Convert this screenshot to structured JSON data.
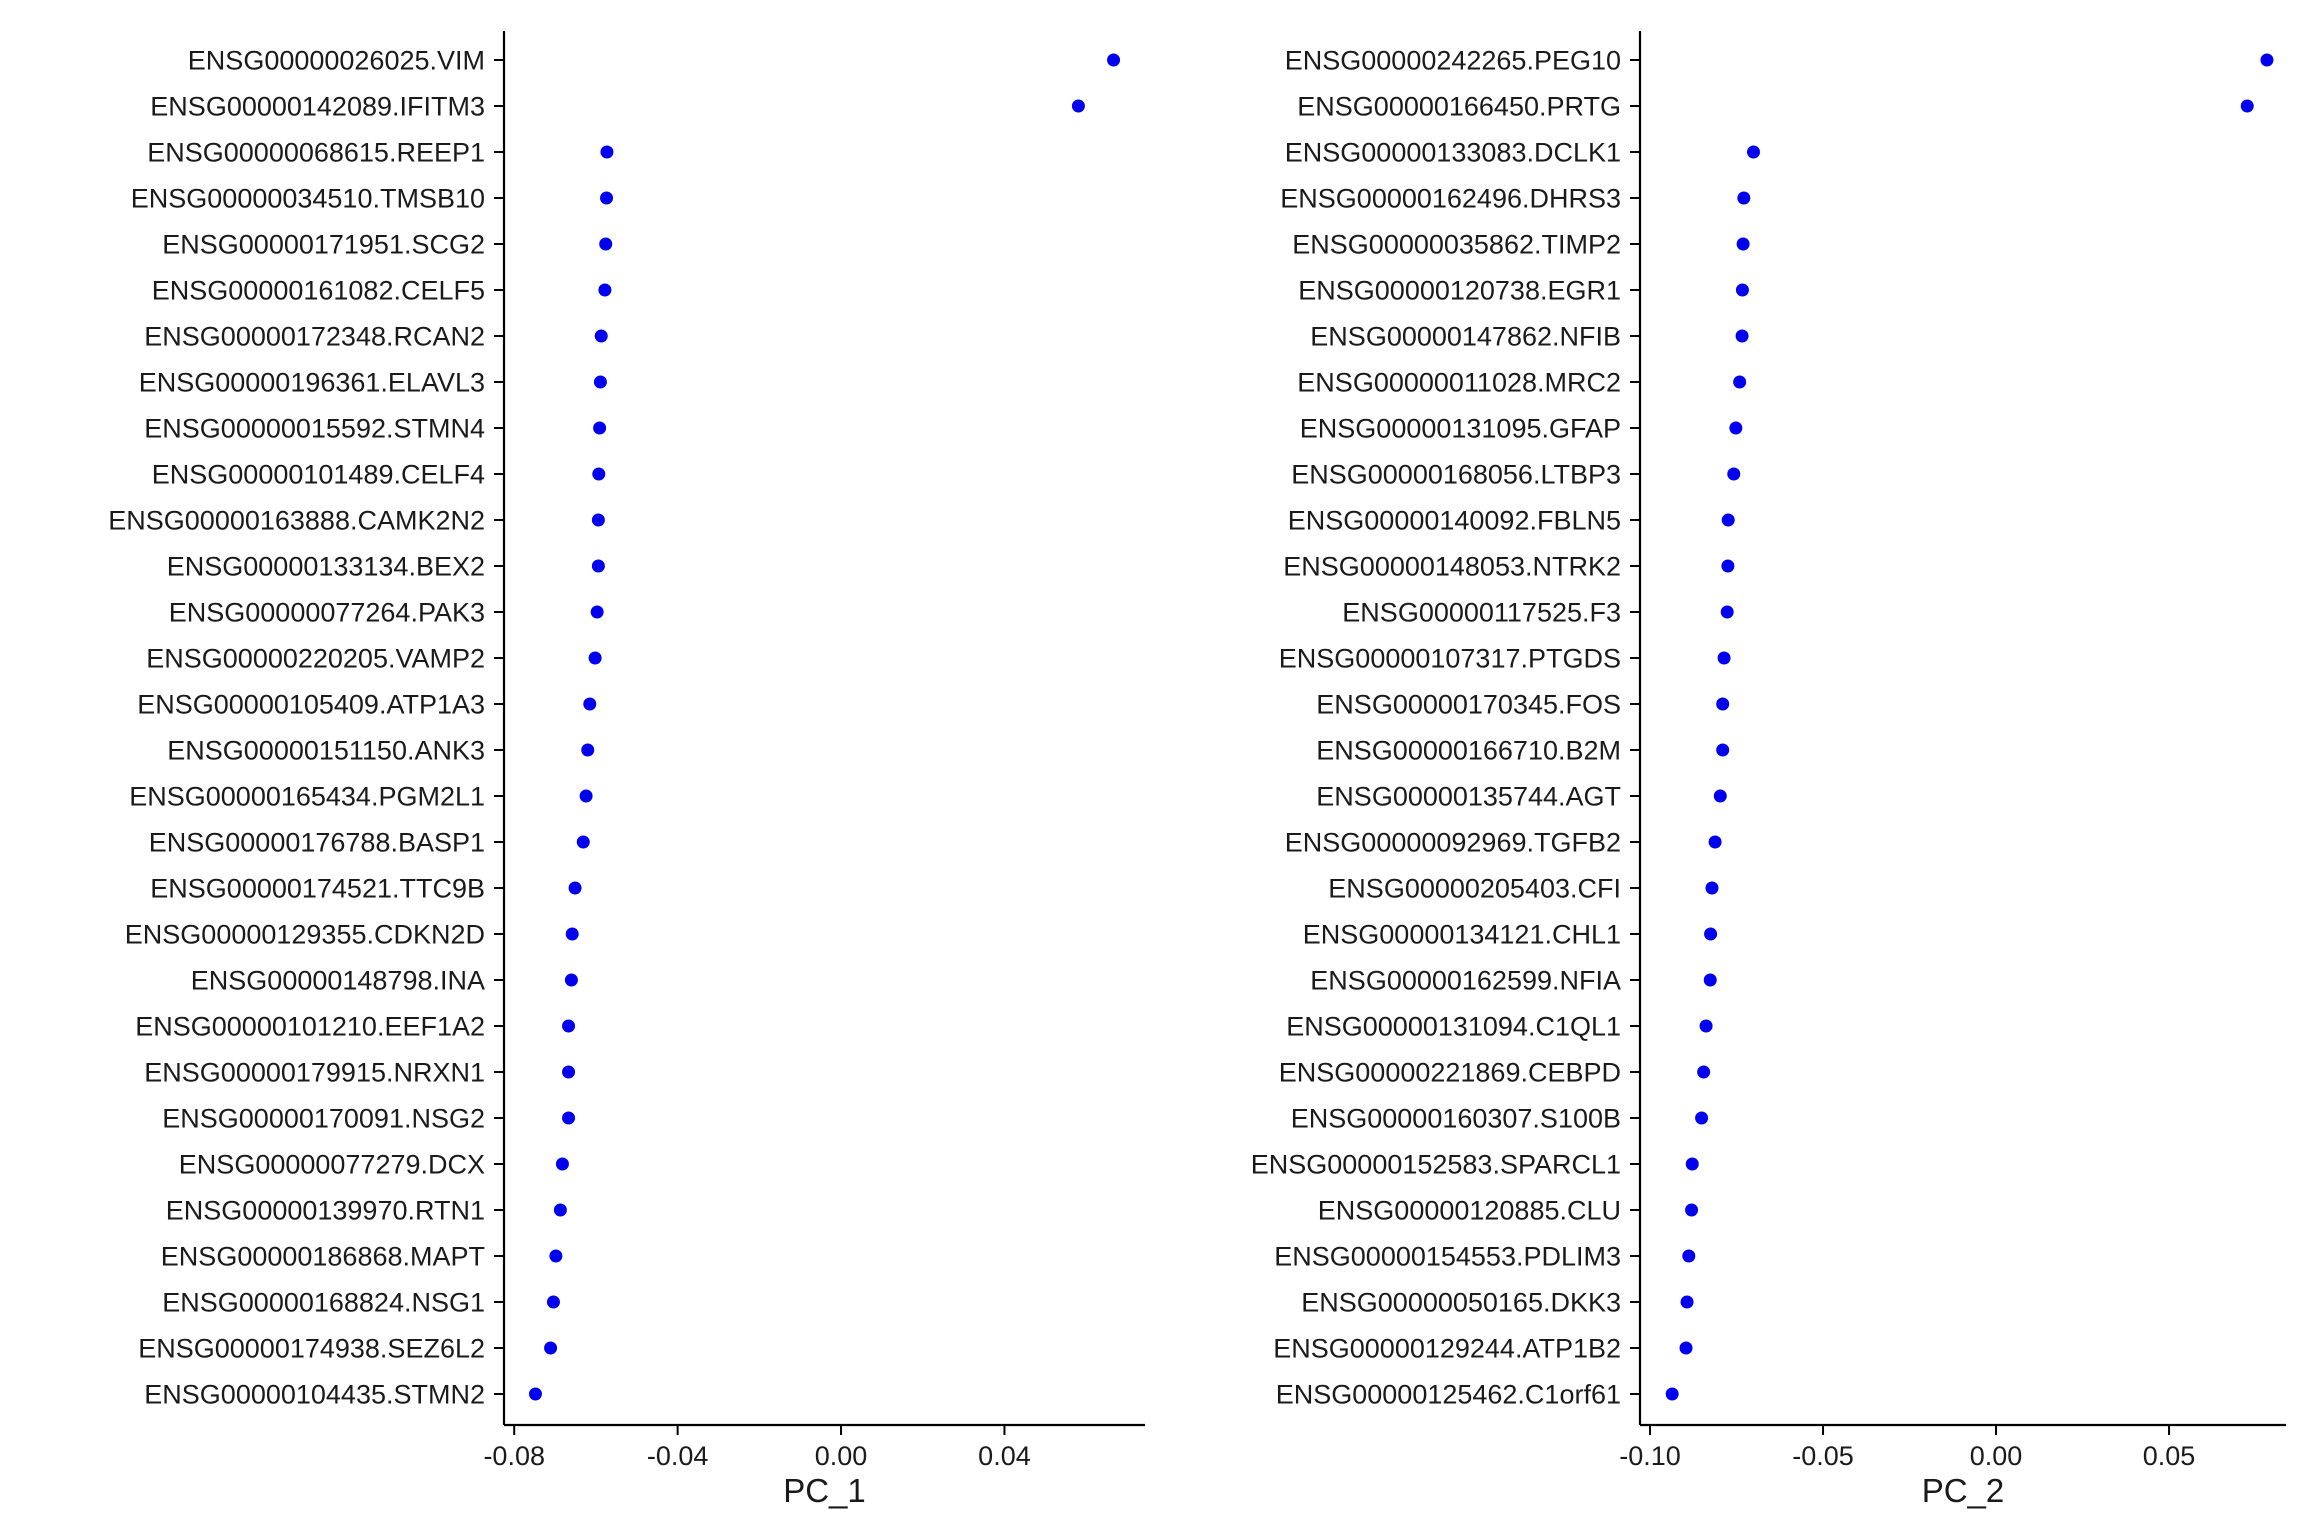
{
  "chart_data": [
    {
      "type": "scatter",
      "xlabel": "PC_1",
      "ylabel": "",
      "xlim": [
        -0.0825,
        0.0744
      ],
      "x_ticks": [
        -0.08,
        -0.04,
        0.0,
        0.04
      ],
      "x_tick_labels": [
        "-0.08",
        "-0.04",
        "0.00",
        "0.04"
      ],
      "grid": false,
      "point_color": "#0000ee",
      "points": [
        {
          "gene": "ENSG00000026025.VIM",
          "value": 0.0667
        },
        {
          "gene": "ENSG00000142089.IFITM3",
          "value": 0.0581
        },
        {
          "gene": "ENSG00000068615.REEP1",
          "value": -0.0573
        },
        {
          "gene": "ENSG00000034510.TMSB10",
          "value": -0.0574
        },
        {
          "gene": "ENSG00000171951.SCG2",
          "value": -0.0576
        },
        {
          "gene": "ENSG00000161082.CELF5",
          "value": -0.0578
        },
        {
          "gene": "ENSG00000172348.RCAN2",
          "value": -0.0587
        },
        {
          "gene": "ENSG00000196361.ELAVL3",
          "value": -0.0589
        },
        {
          "gene": "ENSG00000015592.STMN4",
          "value": -0.0591
        },
        {
          "gene": "ENSG00000101489.CELF4",
          "value": -0.0593
        },
        {
          "gene": "ENSG00000163888.CAMK2N2",
          "value": -0.0594
        },
        {
          "gene": "ENSG00000133134.BEX2",
          "value": -0.0594
        },
        {
          "gene": "ENSG00000077264.PAK3",
          "value": -0.0597
        },
        {
          "gene": "ENSG00000220205.VAMP2",
          "value": -0.0602
        },
        {
          "gene": "ENSG00000105409.ATP1A3",
          "value": -0.0615
        },
        {
          "gene": "ENSG00000151150.ANK3",
          "value": -0.062
        },
        {
          "gene": "ENSG00000165434.PGM2L1",
          "value": -0.0624
        },
        {
          "gene": "ENSG00000176788.BASP1",
          "value": -0.0631
        },
        {
          "gene": "ENSG00000174521.TTC9B",
          "value": -0.0651
        },
        {
          "gene": "ENSG00000129355.CDKN2D",
          "value": -0.0658
        },
        {
          "gene": "ENSG00000148798.INA",
          "value": -0.066
        },
        {
          "gene": "ENSG00000101210.EEF1A2",
          "value": -0.0667
        },
        {
          "gene": "ENSG00000179915.NRXN1",
          "value": -0.0667
        },
        {
          "gene": "ENSG00000170091.NSG2",
          "value": -0.0667
        },
        {
          "gene": "ENSG00000077279.DCX",
          "value": -0.0682
        },
        {
          "gene": "ENSG00000139970.RTN1",
          "value": -0.0687
        },
        {
          "gene": "ENSG00000186868.MAPT",
          "value": -0.0698
        },
        {
          "gene": "ENSG00000168824.NSG1",
          "value": -0.0704
        },
        {
          "gene": "ENSG00000174938.SEZ6L2",
          "value": -0.0711
        },
        {
          "gene": "ENSG00000104435.STMN2",
          "value": -0.0748
        }
      ]
    },
    {
      "type": "scatter",
      "xlabel": "PC_2",
      "ylabel": "",
      "xlim": [
        -0.1029,
        0.0838
      ],
      "x_ticks": [
        -0.1,
        -0.05,
        0.0,
        0.05
      ],
      "x_tick_labels": [
        "-0.10",
        "-0.05",
        "0.00",
        "0.05"
      ],
      "grid": false,
      "point_color": "#0000ee",
      "points": [
        {
          "gene": "ENSG00000242265.PEG10",
          "value": 0.0783
        },
        {
          "gene": "ENSG00000166450.PRTG",
          "value": 0.0726
        },
        {
          "gene": "ENSG00000133083.DCLK1",
          "value": -0.0701
        },
        {
          "gene": "ENSG00000162496.DHRS3",
          "value": -0.0729
        },
        {
          "gene": "ENSG00000035862.TIMP2",
          "value": -0.0731
        },
        {
          "gene": "ENSG00000120738.EGR1",
          "value": -0.0733
        },
        {
          "gene": "ENSG00000147862.NFIB",
          "value": -0.0734
        },
        {
          "gene": "ENSG00000011028.MRC2",
          "value": -0.0741
        },
        {
          "gene": "ENSG00000131095.GFAP",
          "value": -0.0752
        },
        {
          "gene": "ENSG00000168056.LTBP3",
          "value": -0.0758
        },
        {
          "gene": "ENSG00000140092.FBLN5",
          "value": -0.0774
        },
        {
          "gene": "ENSG00000148053.NTRK2",
          "value": -0.0775
        },
        {
          "gene": "ENSG00000117525.F3",
          "value": -0.0777
        },
        {
          "gene": "ENSG00000107317.PTGDS",
          "value": -0.0786
        },
        {
          "gene": "ENSG00000170345.FOS",
          "value": -0.079
        },
        {
          "gene": "ENSG00000166710.B2M",
          "value": -0.079
        },
        {
          "gene": "ENSG00000135744.AGT",
          "value": -0.0797
        },
        {
          "gene": "ENSG00000092969.TGFB2",
          "value": -0.0812
        },
        {
          "gene": "ENSG00000205403.CFI",
          "value": -0.0821
        },
        {
          "gene": "ENSG00000134121.CHL1",
          "value": -0.0825
        },
        {
          "gene": "ENSG00000162599.NFIA",
          "value": -0.0826
        },
        {
          "gene": "ENSG00000131094.C1QL1",
          "value": -0.0838
        },
        {
          "gene": "ENSG00000221869.CEBPD",
          "value": -0.0845
        },
        {
          "gene": "ENSG00000160307.S100B",
          "value": -0.0851
        },
        {
          "gene": "ENSG00000152583.SPARCL1",
          "value": -0.0878
        },
        {
          "gene": "ENSG00000120885.CLU",
          "value": -0.088
        },
        {
          "gene": "ENSG00000154553.PDLIM3",
          "value": -0.0888
        },
        {
          "gene": "ENSG00000050165.DKK3",
          "value": -0.0893
        },
        {
          "gene": "ENSG00000129244.ATP1B2",
          "value": -0.0896
        },
        {
          "gene": "ENSG00000125462.C1orf61",
          "value": -0.0936
        }
      ]
    }
  ]
}
